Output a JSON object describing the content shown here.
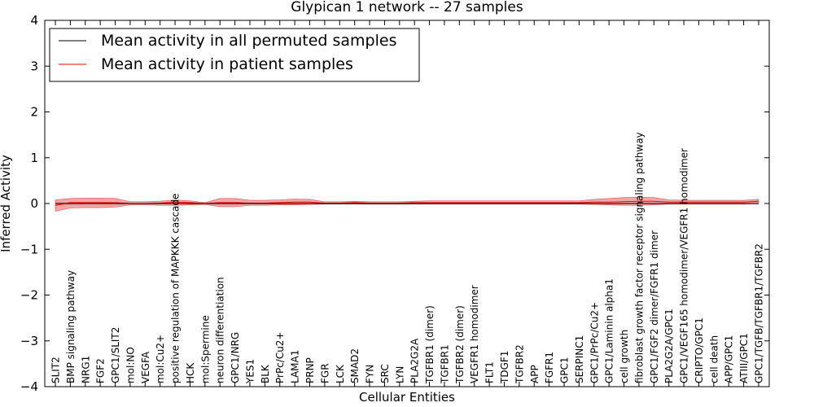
{
  "chart_data": {
    "type": "line",
    "title": "Glypican 1 network -- 27 samples",
    "xlabel": "Cellular Entities",
    "ylabel": "Inferred Activity",
    "ylim": [
      -4,
      4
    ],
    "yticks": [
      -4,
      -3,
      -2,
      -1,
      0,
      1,
      2,
      3,
      4
    ],
    "ytick_labels": [
      "−4",
      "−3",
      "−2",
      "−1",
      "0",
      "1",
      "2",
      "3",
      "4"
    ],
    "grid": false,
    "legend": "top-left",
    "categories": [
      "SLIT2",
      "BMP signaling pathway",
      "NRG1",
      "FGF2",
      "GPC1/SLIT2",
      "mol:NO",
      "VEGFA",
      "mol:Cu2+",
      "positive regulation of MAPKKK cascade",
      "HCK",
      "mol:Spermine",
      "neuron differentiation",
      "GPC1/NRG",
      "YES1",
      "BLK",
      "PrPc/Cu2+",
      "LAMA1",
      "PRNP",
      "FGR",
      "LCK",
      "SMAD2",
      "FYN",
      "SRC",
      "LYN",
      "PLA2G2A",
      "TGFBR1 (dimer)",
      "TGFBR1",
      "TGFBR2 (dimer)",
      "VEGFR1 homodimer",
      "FLT1",
      "TDGF1",
      "TGFBR2",
      "APP",
      "FGFR1",
      "GPC1",
      "SERPINC1",
      "GPC1/PrPc/Cu2+",
      "GPC1/Laminin alpha1",
      "cell growth",
      "fibroblast growth factor receptor signaling pathway",
      "GPC1/FGF2 dimer/FGFR1 dimer",
      "PLA2G2A/GPC1",
      "GPC1/VEGF165 homodimer/VEGFR1 homodimer",
      "CRIPTO/GPC1",
      "cell death",
      "APP/GPC1",
      "ATIII/GPC1",
      "GPC1/TGFB/TGFBR1/TGFBR2"
    ],
    "series": [
      {
        "name": "Mean activity in all permuted samples",
        "color": "#000000",
        "values": [
          0.0,
          0.0,
          0.0,
          0.0,
          0.0,
          0.0,
          0.0,
          0.0,
          0.0,
          0.0,
          0.0,
          0.0,
          0.0,
          0.0,
          0.0,
          0.0,
          0.0,
          0.0,
          0.0,
          0.0,
          0.0,
          0.0,
          0.0,
          0.0,
          0.0,
          0.0,
          0.0,
          0.0,
          0.0,
          0.0,
          0.0,
          0.0,
          0.0,
          0.0,
          0.0,
          0.0,
          0.0,
          0.0,
          0.0,
          0.0,
          0.0,
          0.0,
          0.0,
          0.0,
          0.0,
          0.0,
          0.0,
          0.0
        ],
        "upper": [
          0.04,
          0.04,
          0.03,
          0.03,
          0.03,
          0.02,
          0.02,
          0.02,
          0.03,
          0.03,
          0.02,
          0.03,
          0.03,
          0.02,
          0.02,
          0.02,
          0.02,
          0.02,
          0.02,
          0.02,
          0.02,
          0.02,
          0.02,
          0.02,
          0.02,
          0.02,
          0.02,
          0.02,
          0.02,
          0.02,
          0.02,
          0.02,
          0.02,
          0.02,
          0.02,
          0.02,
          0.02,
          0.02,
          0.02,
          0.02,
          0.02,
          0.02,
          0.02,
          0.02,
          0.02,
          0.02,
          0.02,
          0.02
        ],
        "lower": [
          -0.05,
          -0.05,
          -0.04,
          -0.04,
          -0.04,
          -0.03,
          -0.03,
          -0.03,
          -0.04,
          -0.04,
          -0.03,
          -0.04,
          -0.04,
          -0.03,
          -0.03,
          -0.03,
          -0.03,
          -0.03,
          -0.03,
          -0.03,
          -0.03,
          -0.04,
          -0.04,
          -0.04,
          -0.03,
          -0.03,
          -0.03,
          -0.03,
          -0.03,
          -0.03,
          -0.03,
          -0.03,
          -0.03,
          -0.03,
          -0.03,
          -0.03,
          -0.03,
          -0.03,
          -0.03,
          -0.03,
          -0.03,
          -0.03,
          -0.03,
          -0.03,
          -0.03,
          -0.03,
          -0.03,
          -0.03
        ]
      },
      {
        "name": "Mean activity in patient samples",
        "color": "#ff0000",
        "band_color": "#f08080",
        "values": [
          -0.04,
          0.02,
          0.02,
          0.02,
          0.02,
          0.0,
          0.0,
          0.01,
          0.03,
          0.02,
          0.0,
          0.02,
          0.02,
          0.01,
          0.01,
          0.02,
          0.03,
          0.03,
          0.01,
          0.01,
          0.02,
          0.01,
          0.01,
          0.01,
          0.02,
          0.02,
          0.02,
          0.02,
          0.02,
          0.02,
          0.02,
          0.02,
          0.02,
          0.02,
          0.02,
          0.02,
          0.03,
          0.03,
          0.04,
          0.05,
          0.05,
          0.03,
          0.03,
          0.03,
          0.03,
          0.03,
          0.03,
          0.05
        ],
        "upper": [
          0.08,
          0.11,
          0.12,
          0.12,
          0.11,
          0.04,
          0.04,
          0.05,
          0.08,
          0.06,
          0.02,
          0.11,
          0.11,
          0.07,
          0.07,
          0.08,
          0.1,
          0.09,
          0.04,
          0.04,
          0.05,
          0.04,
          0.04,
          0.04,
          0.05,
          0.06,
          0.06,
          0.06,
          0.06,
          0.06,
          0.06,
          0.06,
          0.06,
          0.06,
          0.06,
          0.06,
          0.09,
          0.11,
          0.13,
          0.14,
          0.13,
          0.08,
          0.07,
          0.07,
          0.07,
          0.07,
          0.07,
          0.09
        ],
        "lower": [
          -0.17,
          -0.1,
          -0.09,
          -0.09,
          -0.08,
          -0.03,
          -0.03,
          -0.04,
          -0.04,
          -0.03,
          -0.02,
          -0.07,
          -0.07,
          -0.04,
          -0.04,
          -0.03,
          -0.03,
          -0.02,
          -0.01,
          -0.01,
          -0.01,
          -0.01,
          -0.01,
          -0.01,
          -0.01,
          -0.01,
          -0.01,
          -0.01,
          -0.01,
          -0.01,
          -0.01,
          -0.01,
          -0.01,
          -0.01,
          -0.01,
          -0.01,
          -0.02,
          -0.03,
          -0.04,
          -0.04,
          -0.03,
          -0.01,
          -0.01,
          -0.01,
          -0.01,
          -0.01,
          -0.01,
          0.0
        ]
      }
    ]
  }
}
